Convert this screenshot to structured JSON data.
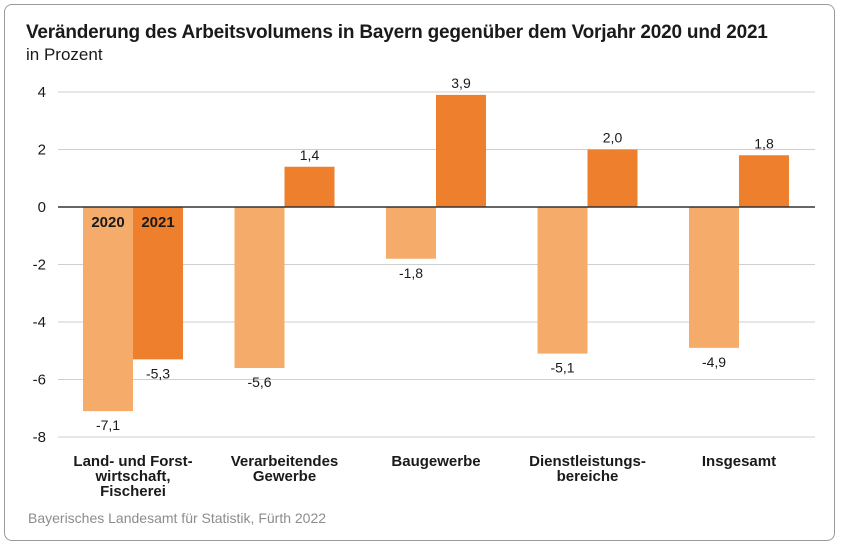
{
  "title": "Veränderung des Arbeitsvolumens in Bayern gegenüber dem Vorjahr 2020 und 2021",
  "subtitle": "in Prozent",
  "source": "Bayerisches Landesamt für Statistik, Fürth 2022",
  "chart_data": {
    "type": "bar",
    "categories": [
      [
        "Land- und Forst-",
        "wirtschaft,",
        "Fischerei"
      ],
      [
        "Verarbeitendes",
        "Gewerbe"
      ],
      [
        "Baugewerbe"
      ],
      [
        "Dienstleistungs-",
        "bereiche"
      ],
      [
        "Insgesamt"
      ]
    ],
    "series": [
      {
        "name": "2020",
        "values": [
          -7.1,
          -5.6,
          -1.8,
          -5.1,
          -4.9
        ],
        "value_labels": [
          "-7,1",
          "-5,6",
          "-1,8",
          "-5,1",
          "-4,9"
        ],
        "color": "#f5ac6a"
      },
      {
        "name": "2021",
        "values": [
          -5.3,
          1.4,
          3.9,
          2.0,
          1.8
        ],
        "value_labels": [
          "-5,3",
          "1,4",
          "3,9",
          "2,0",
          "1,8"
        ],
        "color": "#ee7f2d"
      }
    ],
    "ylim": [
      -8,
      4
    ],
    "yticks": [
      4,
      2,
      0,
      -2,
      -4,
      -6,
      -8
    ],
    "ytick_labels": [
      "4",
      "2",
      "0",
      "-2",
      "-4",
      "-6",
      "-8"
    ],
    "grid": true,
    "legend": "series names printed inside the first pair of bars"
  }
}
